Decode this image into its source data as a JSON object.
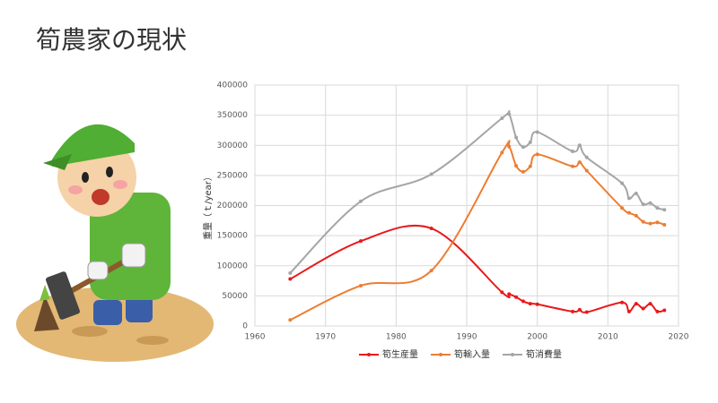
{
  "title": "筍農家の現状",
  "chart_data": {
    "type": "line",
    "y_label": "重量（ｔ/year）",
    "x": [
      1965,
      1975,
      1985,
      1995,
      1996,
      1997,
      1998,
      1999,
      2000,
      2005,
      2006,
      2007,
      2012,
      2013,
      2014,
      2015,
      2016,
      2017,
      2018
    ],
    "series": [
      {
        "name": "筍生産量",
        "color": "#e8191b",
        "values": [
          78000,
          141000,
          162000,
          56000,
          53000,
          48000,
          41000,
          37000,
          36000,
          24000,
          27000,
          23000,
          39000,
          24000,
          37000,
          29000,
          37000,
          24000,
          26000
        ]
      },
      {
        "name": "筍輸入量",
        "color": "#ed7d31",
        "values": [
          10000,
          67000,
          92000,
          288000,
          298000,
          266000,
          256000,
          265000,
          285000,
          265000,
          272000,
          258000,
          196000,
          188000,
          183000,
          173000,
          170000,
          172000,
          168000
        ]
      },
      {
        "name": "筍消費量",
        "color": "#a5a5a5",
        "values": [
          88000,
          207000,
          252000,
          345000,
          352000,
          313000,
          297000,
          305000,
          322000,
          290000,
          300000,
          280000,
          237000,
          212000,
          220000,
          202000,
          204000,
          196000,
          193000
        ]
      }
    ],
    "xlim": [
      1960,
      2020
    ],
    "xticks": [
      1960,
      1970,
      1980,
      1990,
      2000,
      2010,
      2020
    ],
    "ylim": [
      0,
      400000
    ],
    "yticks": [
      0,
      50000,
      100000,
      150000,
      200000,
      250000,
      300000,
      350000,
      400000
    ],
    "grid": true,
    "legend": "bottom"
  }
}
